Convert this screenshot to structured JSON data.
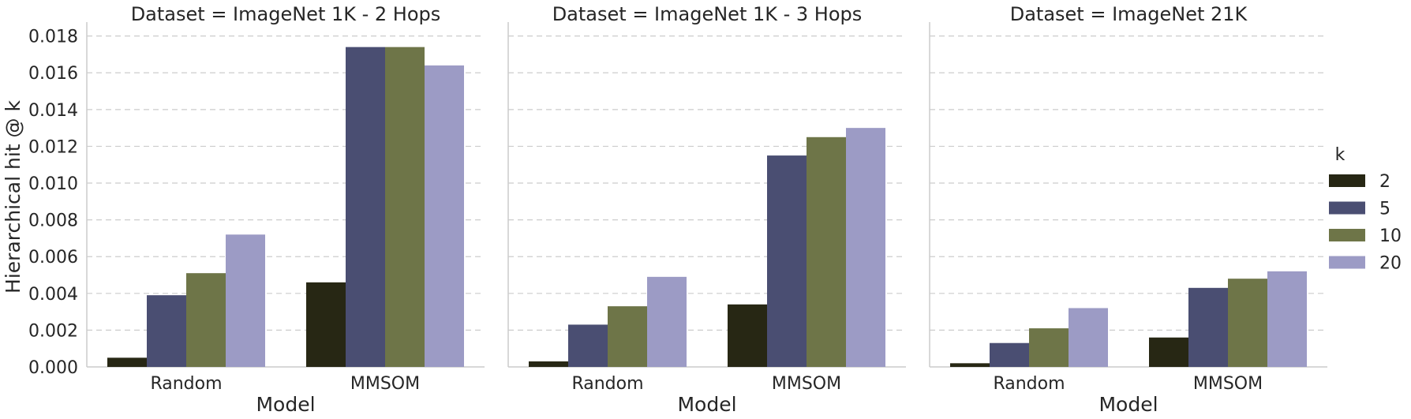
{
  "chart_data": {
    "type": "bar",
    "ylabel": "Hierarchical hit @ k",
    "ylim": [
      0,
      0.0185
    ],
    "yticks": [
      "0.000",
      "0.002",
      "0.004",
      "0.006",
      "0.008",
      "0.010",
      "0.012",
      "0.014",
      "0.016",
      "0.018"
    ],
    "grid": true,
    "legend": {
      "title": "k",
      "placement": "right",
      "entries": [
        "2",
        "5",
        "10",
        "20"
      ]
    },
    "colors": [
      "#272714",
      "#4a4e72",
      "#6e7548",
      "#9c9bc5"
    ],
    "panels": [
      {
        "title": "Dataset = ImageNet 1K - 2 Hops",
        "xlabel": "Model",
        "categories": [
          "Random",
          "MMSOM"
        ],
        "series": [
          {
            "name": "2",
            "values": [
              0.0005,
              0.0046
            ]
          },
          {
            "name": "5",
            "values": [
              0.0039,
              0.0174
            ]
          },
          {
            "name": "10",
            "values": [
              0.0051,
              0.0174
            ]
          },
          {
            "name": "20",
            "values": [
              0.0072,
              0.0164
            ]
          }
        ]
      },
      {
        "title": "Dataset = ImageNet 1K - 3 Hops",
        "xlabel": "Model",
        "categories": [
          "Random",
          "MMSOM"
        ],
        "series": [
          {
            "name": "2",
            "values": [
              0.0003,
              0.0034
            ]
          },
          {
            "name": "5",
            "values": [
              0.0023,
              0.0115
            ]
          },
          {
            "name": "10",
            "values": [
              0.0033,
              0.0125
            ]
          },
          {
            "name": "20",
            "values": [
              0.0049,
              0.013
            ]
          }
        ]
      },
      {
        "title": "Dataset = ImageNet 21K",
        "xlabel": "Model",
        "categories": [
          "Random",
          "MMSOM"
        ],
        "series": [
          {
            "name": "2",
            "values": [
              0.0002,
              0.0016
            ]
          },
          {
            "name": "5",
            "values": [
              0.0013,
              0.0043
            ]
          },
          {
            "name": "10",
            "values": [
              0.0021,
              0.0048
            ]
          },
          {
            "name": "20",
            "values": [
              0.0032,
              0.0052
            ]
          }
        ]
      }
    ]
  }
}
